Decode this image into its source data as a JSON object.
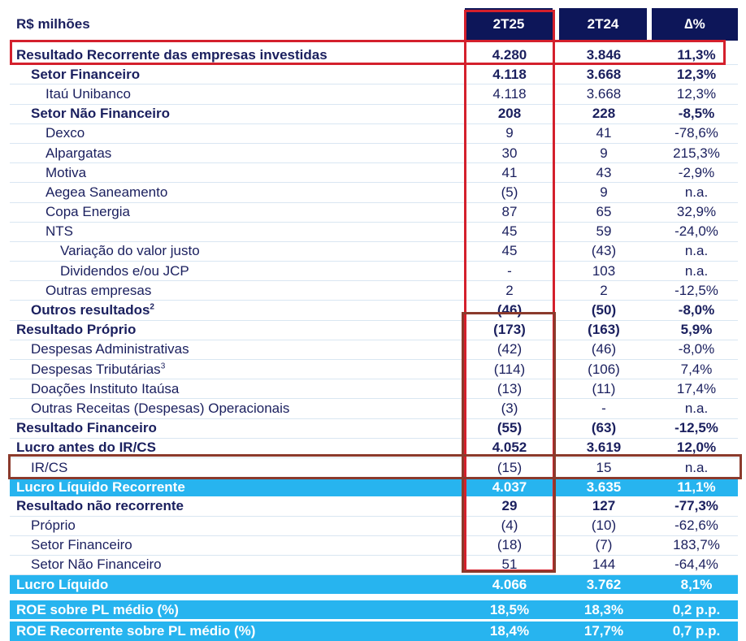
{
  "header": {
    "unit_label": "R$ milhões",
    "col1": "2T25",
    "col2": "2T24",
    "col3": "∆%"
  },
  "rows": [
    {
      "label": "Resultado Recorrente das empresas investidas",
      "v1": "4.280",
      "v2": "3.846",
      "v3": "11,3%"
    },
    {
      "label": "Setor Financeiro",
      "v1": "4.118",
      "v2": "3.668",
      "v3": "12,3%"
    },
    {
      "label": "Itaú Unibanco",
      "v1": "4.118",
      "v2": "3.668",
      "v3": "12,3%"
    },
    {
      "label": "Setor Não Financeiro",
      "v1": "208",
      "v2": "228",
      "v3": "-8,5%"
    },
    {
      "label": "Dexco",
      "v1": "9",
      "v2": "41",
      "v3": "-78,6%"
    },
    {
      "label": "Alpargatas",
      "v1": "30",
      "v2": "9",
      "v3": "215,3%"
    },
    {
      "label": "Motiva",
      "v1": "41",
      "v2": "43",
      "v3": "-2,9%"
    },
    {
      "label": "Aegea Saneamento",
      "v1": "(5)",
      "v2": "9",
      "v3": "n.a."
    },
    {
      "label": "Copa Energia",
      "v1": "87",
      "v2": "65",
      "v3": "32,9%"
    },
    {
      "label": "NTS",
      "v1": "45",
      "v2": "59",
      "v3": "-24,0%"
    },
    {
      "label": "Variação do valor justo",
      "v1": "45",
      "v2": "(43)",
      "v3": "n.a."
    },
    {
      "label": "Dividendos e/ou JCP",
      "v1": "-",
      "v2": "103",
      "v3": "n.a."
    },
    {
      "label": "Outras empresas",
      "v1": "2",
      "v2": "2",
      "v3": "-12,5%"
    },
    {
      "label": "Outros resultados",
      "sup": "2",
      "v1": "(46)",
      "v2": "(50)",
      "v3": "-8,0%"
    },
    {
      "label": "Resultado Próprio",
      "v1": "(173)",
      "v2": "(163)",
      "v3": "5,9%"
    },
    {
      "label": "Despesas Administrativas",
      "v1": "(42)",
      "v2": "(46)",
      "v3": "-8,0%"
    },
    {
      "label": "Despesas Tributárias",
      "sup": "3",
      "v1": "(114)",
      "v2": "(106)",
      "v3": "7,4%"
    },
    {
      "label": "Doações Instituto Itaúsa",
      "v1": "(13)",
      "v2": "(11)",
      "v3": "17,4%"
    },
    {
      "label": "Outras Receitas (Despesas) Operacionais",
      "v1": "(3)",
      "v2": "-",
      "v3": "n.a."
    },
    {
      "label": "Resultado Financeiro",
      "v1": "(55)",
      "v2": "(63)",
      "v3": "-12,5%"
    },
    {
      "label": "Lucro antes do IR/CS",
      "v1": "4.052",
      "v2": "3.619",
      "v3": "12,0%"
    },
    {
      "label": "IR/CS",
      "v1": "(15)",
      "v2": "15",
      "v3": "n.a."
    },
    {
      "label": "Lucro Líquido Recorrente",
      "v1": "4.037",
      "v2": "3.635",
      "v3": "11,1%"
    },
    {
      "label": "Resultado não recorrente",
      "v1": "29",
      "v2": "127",
      "v3": "-77,3%"
    },
    {
      "label": "Próprio",
      "v1": "(4)",
      "v2": "(10)",
      "v3": "-62,6%"
    },
    {
      "label": "Setor Financeiro",
      "v1": "(18)",
      "v2": "(7)",
      "v3": "183,7%"
    },
    {
      "label": "Setor Não Financeiro",
      "v1": "51",
      "v2": "144",
      "v3": "-64,4%"
    },
    {
      "label": "Lucro Líquido",
      "v1": "4.066",
      "v2": "3.762",
      "v3": "8,1%"
    },
    {
      "label": "ROE sobre PL médio (%)",
      "v1": "18,5%",
      "v2": "18,3%",
      "v3": "0,2 p.p."
    },
    {
      "label": "ROE Recorrente sobre PL médio (%)",
      "v1": "18,4%",
      "v2": "17,7%",
      "v3": "0,7 p.p."
    }
  ],
  "colors": {
    "header_bg": "#0d1659",
    "band": "#27b4ef",
    "text": "#1a1f5e",
    "highlight_red": "#d4202c",
    "highlight_brown": "#8b3a2c"
  }
}
